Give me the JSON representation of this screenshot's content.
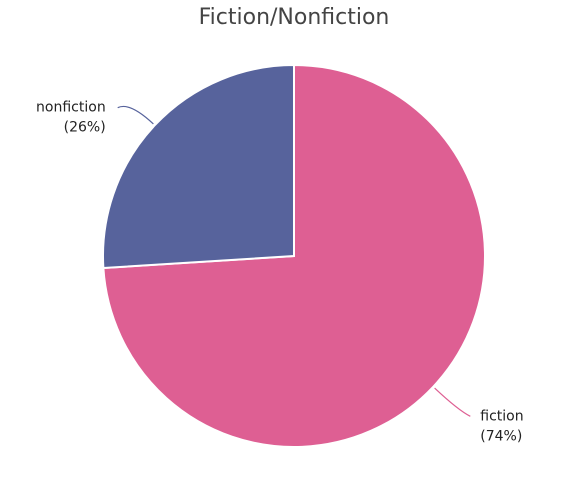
{
  "chart_data": {
    "type": "pie",
    "title": "Fiction/Nonfiction",
    "categories": [
      "fiction",
      "nonfiction"
    ],
    "values": [
      74,
      26
    ],
    "value_labels": [
      "(74%)",
      "(26%)"
    ],
    "colors": [
      "#de5f93",
      "#57639c"
    ]
  }
}
